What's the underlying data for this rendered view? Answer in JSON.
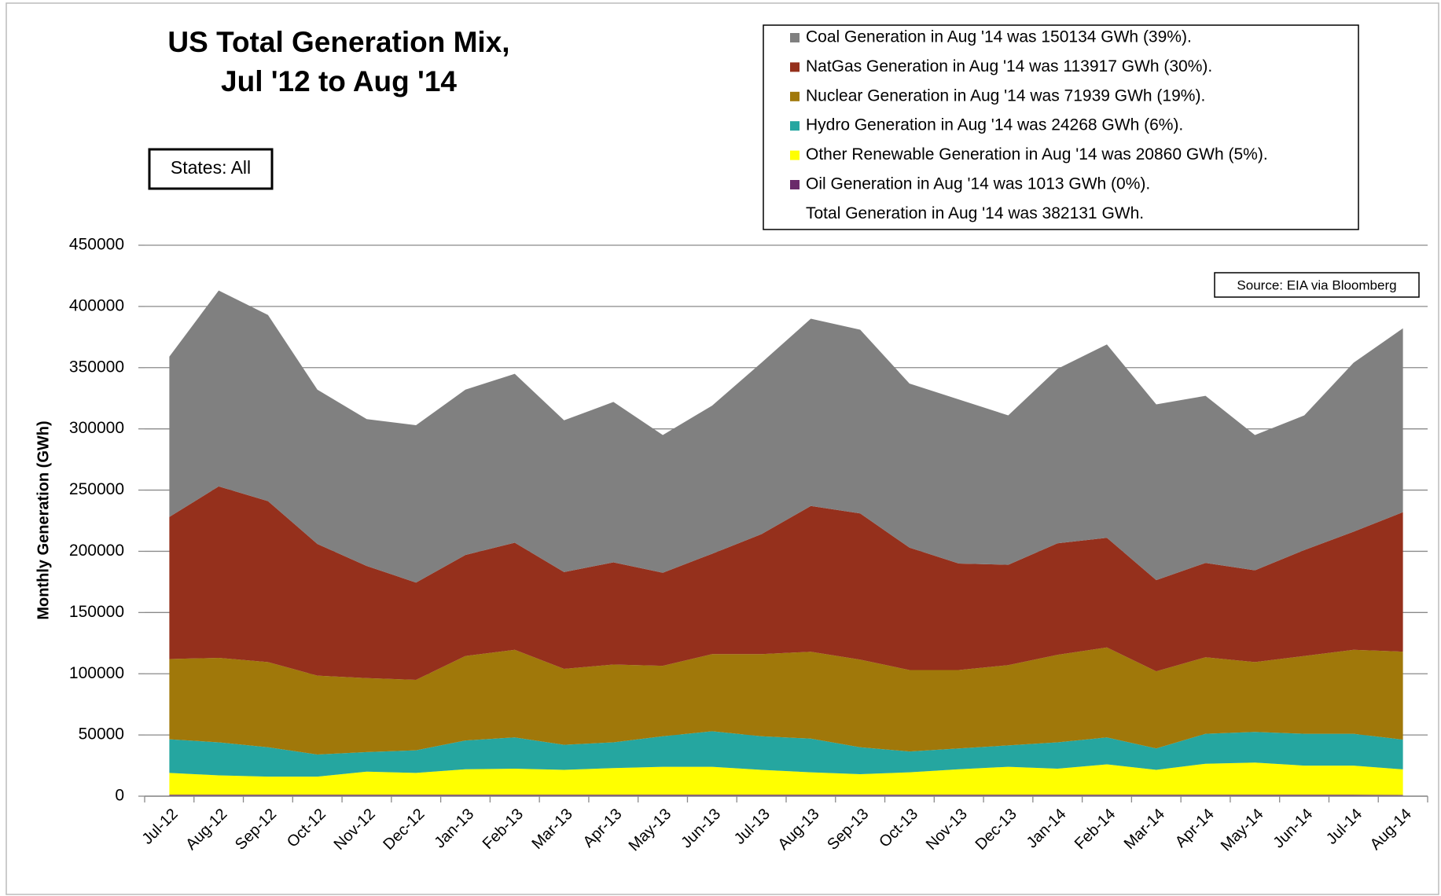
{
  "chart_data": {
    "type": "stacked_area",
    "title": [
      "US Total Generation Mix,",
      "Jul '12 to Aug '14"
    ],
    "y_label": "Monthly Generation (GWh)",
    "annotations": {
      "states": "States: All",
      "source": "Source: EIA via Bloomberg",
      "total": "Total Generation in Aug '14 was 382131 GWh."
    },
    "categories": [
      "Jul-12",
      "Aug-12",
      "Sep-12",
      "Oct-12",
      "Nov-12",
      "Dec-12",
      "Jan-13",
      "Feb-13",
      "Mar-13",
      "Apr-13",
      "May-13",
      "Jun-13",
      "Jul-13",
      "Aug-13",
      "Sep-13",
      "Oct-13",
      "Nov-13",
      "Dec-13",
      "Jan-14",
      "Feb-14",
      "Mar-14",
      "Apr-14",
      "May-14",
      "Jun-14",
      "Jul-14",
      "Aug-14"
    ],
    "series": [
      {
        "name": "Oil Generation in Aug '14 was 1013 GWh (0%).",
        "color": "#6a2a6a",
        "values": [
          1200,
          1200,
          1200,
          1200,
          1200,
          1200,
          1200,
          1200,
          1200,
          1200,
          1200,
          1200,
          1200,
          1200,
          1200,
          1200,
          1200,
          1200,
          1200,
          1200,
          1200,
          1200,
          1200,
          1200,
          1200,
          1013
        ]
      },
      {
        "name": "Other Renewable Generation in Aug '14 was 20860 GWh (5%).",
        "color": "#ffff00",
        "values": [
          17800,
          15800,
          14800,
          14800,
          18800,
          17800,
          20800,
          21300,
          20300,
          21800,
          22800,
          22800,
          20300,
          18300,
          16800,
          18300,
          20800,
          22800,
          21300,
          24800,
          20300,
          25300,
          26300,
          23800,
          23800,
          20860
        ]
      },
      {
        "name": "Hydro Generation in Aug '14 was 24268 GWh (6%).",
        "color": "#25a6a0",
        "values": [
          27500,
          27000,
          24000,
          18000,
          16000,
          18500,
          23500,
          25500,
          20500,
          21000,
          25000,
          29000,
          27500,
          27500,
          22000,
          17000,
          17000,
          17500,
          21500,
          22000,
          17500,
          24500,
          25000,
          26000,
          26000,
          24268
        ]
      },
      {
        "name": "Nuclear Generation in Aug '14 was 71939 GWh (19%).",
        "color": "#a0780a",
        "values": [
          65500,
          69000,
          69500,
          64500,
          60500,
          57500,
          69000,
          71500,
          62000,
          63500,
          57500,
          63000,
          67000,
          71000,
          71500,
          66500,
          64000,
          65500,
          71500,
          73500,
          63000,
          62500,
          57000,
          63500,
          68500,
          71939
        ]
      },
      {
        "name": "NatGas Generation in Aug '14 was 113917 GWh (30%).",
        "color": "#95301c",
        "values": [
          116000,
          140000,
          131500,
          107500,
          91500,
          79500,
          82500,
          87500,
          79000,
          83500,
          76000,
          82000,
          98000,
          119000,
          119500,
          100000,
          87000,
          82000,
          91000,
          89500,
          74500,
          77000,
          75000,
          86500,
          96500,
          113917
        ]
      },
      {
        "name": "Coal Generation in Aug '14 was 150134 GWh (39%).",
        "color": "#808080",
        "values": [
          131000,
          160000,
          152000,
          126000,
          120000,
          128500,
          135000,
          138000,
          124000,
          131000,
          112500,
          121000,
          140000,
          153000,
          150000,
          134000,
          134000,
          122000,
          142500,
          158000,
          143500,
          136500,
          110500,
          110000,
          138000,
          150134
        ]
      }
    ],
    "ylim": [
      0,
      450000
    ],
    "yticks": [
      0,
      50000,
      100000,
      150000,
      200000,
      250000,
      300000,
      350000,
      400000,
      450000
    ],
    "grid": true
  }
}
